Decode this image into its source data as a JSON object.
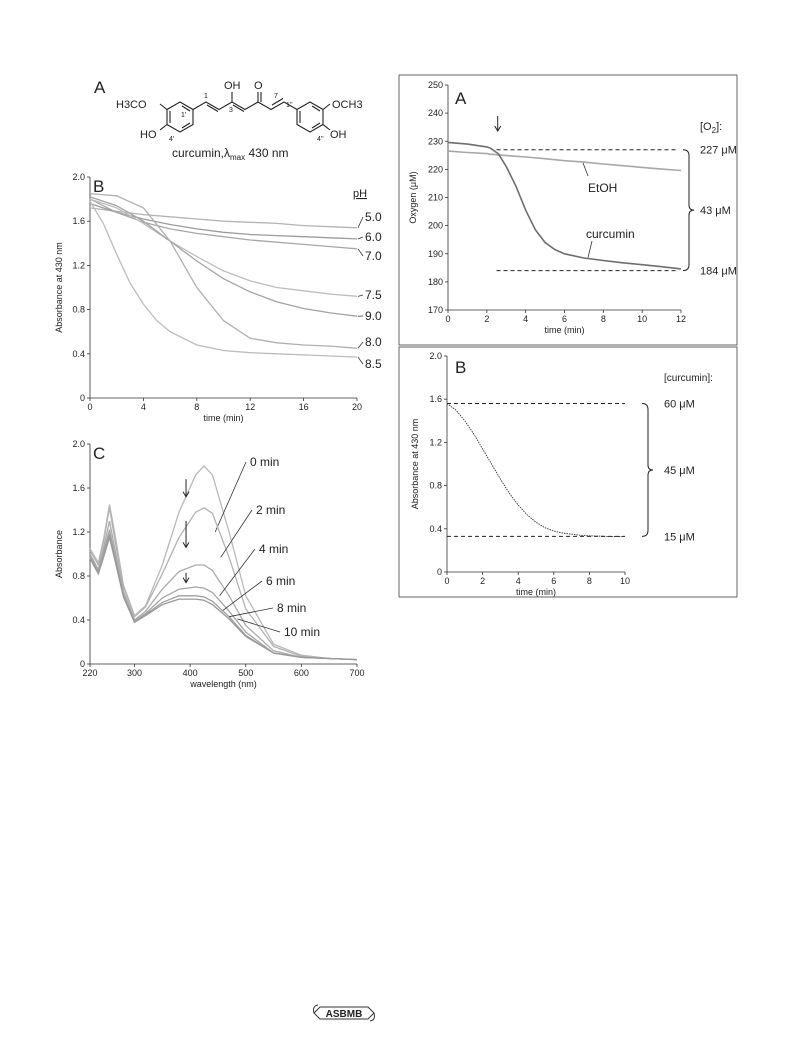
{
  "structure_panel": {
    "label": "A",
    "caption_prefix": "curcumin,",
    "lambda": "λ",
    "lambda_sub": "max",
    "caption_suffix": " 430 nm",
    "atoms": {
      "h3co": "H3CO",
      "ho_left": "HO",
      "oh_top": "OH",
      "o_top": "O",
      "och3": "OCH3",
      "oh_right": "OH",
      "n1": "1",
      "n3": "3",
      "n7": "7",
      "n1p": "1'",
      "n4p": "4'",
      "n1pp": "1''",
      "n4pp": "4''"
    }
  },
  "chart_data": [
    {
      "id": "B",
      "type": "line",
      "panel_label": "B",
      "xlabel": "time (min)",
      "ylabel": "Absorbance at 430 nm",
      "xlim": [
        0,
        20
      ],
      "ylim": [
        0,
        2.0
      ],
      "xticks": [
        "0",
        "4",
        "8",
        "12",
        "16",
        "20"
      ],
      "yticks": [
        "0",
        "0.4",
        "0.8",
        "1.2",
        "1.6",
        "2.0"
      ],
      "legend_title": "pH",
      "series": [
        {
          "name": "5.0",
          "x": [
            0,
            2,
            4,
            6,
            8,
            10,
            12,
            14,
            16,
            18,
            20
          ],
          "y": [
            1.72,
            1.69,
            1.66,
            1.64,
            1.62,
            1.6,
            1.59,
            1.58,
            1.56,
            1.55,
            1.54
          ]
        },
        {
          "name": "6.0",
          "x": [
            0,
            2,
            4,
            6,
            8,
            10,
            12,
            14,
            16,
            18,
            20
          ],
          "y": [
            1.76,
            1.68,
            1.62,
            1.57,
            1.53,
            1.5,
            1.48,
            1.47,
            1.46,
            1.45,
            1.44
          ]
        },
        {
          "name": "7.0",
          "x": [
            0,
            2,
            4,
            6,
            8,
            10,
            12,
            14,
            16,
            18,
            20
          ],
          "y": [
            1.8,
            1.68,
            1.59,
            1.53,
            1.49,
            1.46,
            1.43,
            1.41,
            1.39,
            1.37,
            1.35
          ]
        },
        {
          "name": "7.5",
          "x": [
            0,
            2,
            4,
            6,
            8,
            10,
            12,
            14,
            16,
            18,
            20
          ],
          "y": [
            1.8,
            1.72,
            1.58,
            1.42,
            1.28,
            1.15,
            1.06,
            1.0,
            0.97,
            0.94,
            0.92
          ]
        },
        {
          "name": "9.0",
          "x": [
            0,
            2,
            4,
            6,
            8,
            10,
            12,
            14,
            16,
            18,
            20
          ],
          "y": [
            1.82,
            1.74,
            1.6,
            1.42,
            1.24,
            1.08,
            0.96,
            0.87,
            0.81,
            0.77,
            0.74
          ]
        },
        {
          "name": "8.0",
          "x": [
            0,
            2,
            4,
            6,
            8,
            10,
            12,
            14,
            16,
            18,
            20
          ],
          "y": [
            1.85,
            1.83,
            1.72,
            1.42,
            1.0,
            0.7,
            0.54,
            0.5,
            0.48,
            0.47,
            0.45
          ]
        },
        {
          "name": "8.5",
          "x": [
            0,
            1,
            2,
            3,
            4,
            5,
            6,
            8,
            10,
            12,
            14,
            16,
            18,
            20
          ],
          "y": [
            1.78,
            1.58,
            1.3,
            1.04,
            0.85,
            0.7,
            0.6,
            0.48,
            0.43,
            0.41,
            0.4,
            0.39,
            0.38,
            0.37
          ]
        }
      ]
    },
    {
      "id": "C",
      "type": "line",
      "panel_label": "C",
      "xlabel": "wavelength (nm)",
      "ylabel": "Absorbance",
      "xlim": [
        220,
        700
      ],
      "ylim": [
        0,
        2.0
      ],
      "xticks": [
        "220",
        "300",
        "400",
        "500",
        "600",
        "700"
      ],
      "yticks": [
        "0",
        "0.4",
        "0.8",
        "1.2",
        "1.6",
        "2.0"
      ],
      "series": [
        {
          "name": "0 min",
          "x": [
            220,
            235,
            245,
            255,
            265,
            280,
            300,
            320,
            350,
            380,
            410,
            425,
            440,
            470,
            500,
            550,
            600,
            650,
            700
          ],
          "y": [
            1.05,
            0.92,
            1.15,
            1.45,
            1.18,
            0.72,
            0.44,
            0.53,
            0.9,
            1.38,
            1.72,
            1.8,
            1.72,
            1.2,
            0.62,
            0.18,
            0.08,
            0.05,
            0.04
          ]
        },
        {
          "name": "2 min",
          "x": [
            220,
            235,
            245,
            255,
            265,
            280,
            300,
            320,
            350,
            380,
            410,
            425,
            440,
            470,
            500,
            550,
            600,
            650,
            700
          ],
          "y": [
            1.03,
            0.9,
            1.13,
            1.42,
            1.12,
            0.7,
            0.43,
            0.52,
            0.82,
            1.15,
            1.38,
            1.42,
            1.37,
            0.97,
            0.5,
            0.16,
            0.07,
            0.05,
            0.04
          ]
        },
        {
          "name": "4 min",
          "x": [
            220,
            235,
            245,
            255,
            265,
            280,
            300,
            320,
            350,
            380,
            410,
            425,
            440,
            470,
            500,
            550,
            600,
            650,
            700
          ],
          "y": [
            1.0,
            0.86,
            1.07,
            1.3,
            1.04,
            0.66,
            0.4,
            0.48,
            0.68,
            0.84,
            0.9,
            0.9,
            0.85,
            0.62,
            0.35,
            0.12,
            0.06,
            0.05,
            0.04
          ]
        },
        {
          "name": "6 min",
          "x": [
            220,
            235,
            245,
            255,
            265,
            280,
            300,
            320,
            350,
            380,
            410,
            425,
            440,
            470,
            500,
            550,
            600,
            650,
            700
          ],
          "y": [
            0.98,
            0.84,
            1.03,
            1.22,
            0.99,
            0.63,
            0.39,
            0.46,
            0.6,
            0.68,
            0.7,
            0.69,
            0.65,
            0.48,
            0.29,
            0.1,
            0.06,
            0.05,
            0.04
          ]
        },
        {
          "name": "8 min",
          "x": [
            220,
            235,
            245,
            255,
            265,
            280,
            300,
            320,
            350,
            380,
            410,
            425,
            440,
            470,
            500,
            550,
            600,
            650,
            700
          ],
          "y": [
            0.97,
            0.83,
            1.0,
            1.18,
            0.96,
            0.62,
            0.38,
            0.45,
            0.56,
            0.62,
            0.62,
            0.61,
            0.57,
            0.43,
            0.26,
            0.1,
            0.06,
            0.05,
            0.04
          ]
        },
        {
          "name": "10 min",
          "x": [
            220,
            235,
            245,
            255,
            265,
            280,
            300,
            320,
            350,
            380,
            410,
            425,
            440,
            470,
            500,
            550,
            600,
            650,
            700
          ],
          "y": [
            0.96,
            0.82,
            0.98,
            1.15,
            0.94,
            0.61,
            0.38,
            0.44,
            0.54,
            0.59,
            0.59,
            0.58,
            0.54,
            0.41,
            0.25,
            0.1,
            0.06,
            0.05,
            0.04
          ]
        }
      ],
      "arrows_at_x": [
        425,
        425,
        425
      ]
    },
    {
      "id": "RA",
      "type": "line",
      "panel_label": "A",
      "xlabel": "time (min)",
      "ylabel": "Oxygen (μM)",
      "xlim": [
        0,
        12
      ],
      "ylim": [
        170,
        250
      ],
      "xticks": [
        "0",
        "2",
        "4",
        "6",
        "8",
        "10",
        "12"
      ],
      "yticks": [
        "170",
        "180",
        "190",
        "200",
        "210",
        "220",
        "230",
        "240",
        "250"
      ],
      "arrow_at_x": 2.2,
      "ref_lines": [
        227,
        184
      ],
      "o2_label": "[O",
      "o2_sub": "2",
      "o2_suffix": "]:",
      "annotations": {
        "top": "227 μM",
        "mid": "43 μM",
        "bottom": "184 μM"
      },
      "series": [
        {
          "name": "EtOH",
          "x": [
            0,
            1,
            2,
            2.2,
            3,
            4,
            5,
            6,
            7,
            8,
            9,
            10,
            11,
            12
          ],
          "y": [
            226.5,
            226.0,
            225.6,
            225.4,
            224.9,
            224.4,
            223.8,
            223.1,
            222.6,
            221.9,
            221.3,
            220.7,
            220.1,
            219.6
          ]
        },
        {
          "name": "curcumin",
          "x": [
            0,
            1,
            2,
            2.2,
            2.6,
            3,
            3.5,
            4,
            4.5,
            5,
            5.5,
            6,
            7,
            8,
            9,
            10,
            11,
            11.5,
            12
          ],
          "y": [
            229.6,
            229.0,
            228.0,
            227.5,
            225.5,
            221.0,
            214.0,
            205.5,
            198.5,
            194.0,
            191.5,
            190.0,
            188.5,
            187.6,
            186.8,
            186.1,
            185.4,
            185.0,
            184.6
          ]
        }
      ]
    },
    {
      "id": "RB",
      "type": "line",
      "panel_label": "B",
      "xlabel": "time (min)",
      "ylabel": "Absorbance at 430 nm",
      "xlim": [
        0,
        10
      ],
      "ylim": [
        0,
        2.0
      ],
      "xticks": [
        "0",
        "2",
        "4",
        "6",
        "8",
        "10"
      ],
      "yticks": [
        "0",
        "0.4",
        "0.8",
        "1.2",
        "1.6",
        "2.0"
      ],
      "ref_lines": [
        1.56,
        0.33
      ],
      "conc_label": "[curcumin]:",
      "annotations": {
        "top": "60 μM",
        "mid": "45 μM",
        "bottom": "15 μM"
      },
      "series": [
        {
          "name": "",
          "x": [
            0,
            0.5,
            1,
            1.5,
            2,
            2.5,
            3,
            3.5,
            4,
            4.5,
            5,
            5.5,
            6,
            6.5,
            7,
            7.5,
            8,
            9,
            10
          ],
          "y": [
            1.56,
            1.5,
            1.4,
            1.28,
            1.14,
            1.0,
            0.86,
            0.73,
            0.62,
            0.53,
            0.46,
            0.41,
            0.38,
            0.36,
            0.35,
            0.34,
            0.335,
            0.33,
            0.33
          ]
        }
      ]
    }
  ],
  "logo": {
    "text": "ASBMB"
  }
}
